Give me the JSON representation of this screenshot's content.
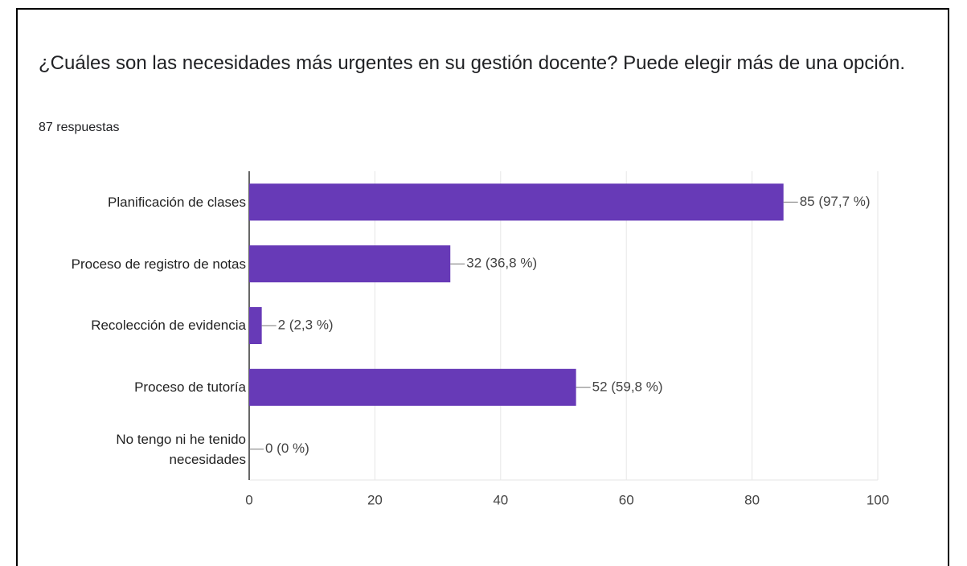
{
  "chart_data": {
    "type": "bar",
    "orientation": "horizontal",
    "title": "¿Cuáles son las necesidades más urgentes en su gestión docente? Puede elegir más de una opción.",
    "subtitle": "87 respuestas",
    "categories": [
      "Planificación de clases",
      "Proceso de registro de notas",
      "Recolección de evidencia",
      "Proceso de tutoría",
      "No tengo ni he tenido necesidades"
    ],
    "values": [
      85,
      32,
      2,
      52,
      0
    ],
    "value_labels": [
      "85 (97,7 %)",
      "32 (36,8 %)",
      "2 (2,3 %)",
      "52 (59,8 %)",
      "0 (0 %)"
    ],
    "color": "#673ab7",
    "xlim": [
      0,
      100
    ],
    "xticks": [
      0,
      20,
      40,
      60,
      80,
      100
    ],
    "grid": true
  }
}
